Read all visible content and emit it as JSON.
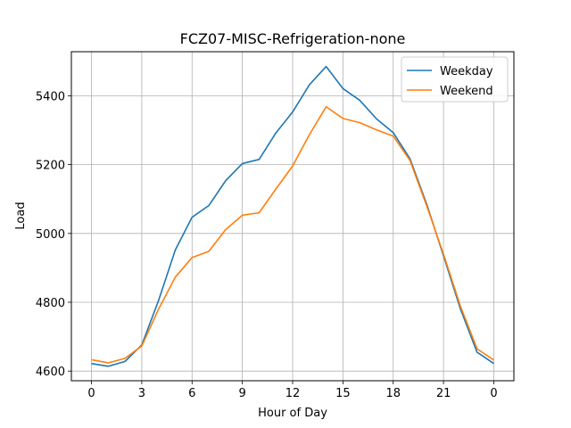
{
  "chart_data": {
    "type": "line",
    "title": "FCZ07-MISC-Refrigeration-none",
    "xlabel": "Hour of Day",
    "ylabel": "Load",
    "x_tick_labels": [
      "0",
      "3",
      "6",
      "9",
      "12",
      "15",
      "18",
      "21",
      "0"
    ],
    "x": [
      0,
      1,
      2,
      3,
      4,
      5,
      6,
      7,
      8,
      9,
      10,
      11,
      12,
      13,
      14,
      15,
      16,
      17,
      18,
      19,
      20,
      21,
      22,
      23,
      24
    ],
    "xlim": [
      -1.2,
      25.2
    ],
    "ylim": [
      4572,
      5528
    ],
    "y_ticks": [
      4600,
      4800,
      5000,
      5200,
      5400
    ],
    "grid": true,
    "legend_position": "top-right",
    "series": [
      {
        "name": "Weekday",
        "color": "#1f77b4",
        "values": [
          4622,
          4614,
          4628,
          4676,
          4805,
          4952,
          5047,
          5081,
          5153,
          5203,
          5215,
          5292,
          5353,
          5432,
          5485,
          5421,
          5387,
          5333,
          5293,
          5217,
          5085,
          4935,
          4782,
          4655,
          4622
        ]
      },
      {
        "name": "Weekend",
        "color": "#ff7f0e",
        "values": [
          4633,
          4624,
          4637,
          4673,
          4780,
          4873,
          4930,
          4948,
          5011,
          5053,
          5060,
          5129,
          5196,
          5287,
          5368,
          5334,
          5322,
          5301,
          5283,
          5212,
          5080,
          4940,
          4790,
          4665,
          4632
        ]
      }
    ]
  }
}
